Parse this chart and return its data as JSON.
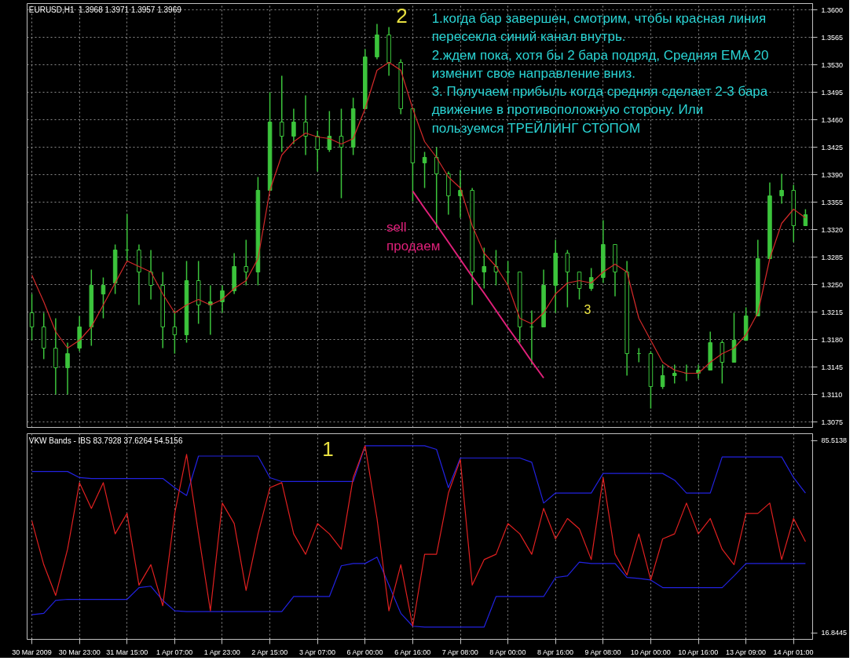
{
  "chart_data": [
    {
      "type": "candlestick",
      "title": "EURUSD,H1  1.3968 1.3971 1.3957 1.3969",
      "color": "#3cc43c",
      "categories": [
        null,
        null,
        null,
        null,
        null,
        null,
        null,
        null,
        null,
        null,
        null,
        null,
        null,
        null,
        null,
        null,
        null,
        null,
        null,
        null,
        null,
        null,
        null,
        null,
        null,
        null,
        null,
        null,
        null,
        null,
        null,
        null,
        null,
        null,
        null,
        null,
        null,
        null,
        null,
        null,
        null,
        null,
        null,
        null,
        null,
        null,
        null,
        null,
        null,
        null,
        null,
        null,
        null,
        null,
        null,
        null,
        null,
        null,
        null,
        null,
        null,
        null,
        null,
        null,
        null,
        null
      ],
      "ohlc": [
        [
          1.3214,
          1.3238,
          1.3179,
          1.3196
        ],
        [
          1.3196,
          1.3214,
          1.3155,
          1.3169
        ],
        [
          1.3169,
          1.3207,
          1.311,
          1.3144
        ],
        [
          1.3144,
          1.3176,
          1.311,
          1.3162
        ],
        [
          1.3169,
          1.321,
          1.3165,
          1.3196
        ],
        [
          1.3196,
          1.3269,
          1.3172,
          1.3249
        ],
        [
          1.3238,
          1.3259,
          1.3207,
          1.3249
        ],
        [
          1.3252,
          1.3301,
          1.3238,
          1.3294
        ],
        [
          1.3294,
          1.334,
          1.328,
          1.3294
        ],
        [
          1.3294,
          1.3301,
          1.3224,
          1.3266
        ],
        [
          1.3266,
          1.3294,
          1.3231,
          1.3249
        ],
        [
          1.3249,
          1.3266,
          1.3169,
          1.3196
        ],
        [
          1.3196,
          1.3217,
          1.3162,
          1.3186
        ],
        [
          1.3186,
          1.328,
          1.3176,
          1.3255
        ],
        [
          1.3255,
          1.328,
          1.32,
          1.3224
        ],
        [
          1.3224,
          1.3249,
          1.3186,
          1.3228
        ],
        [
          1.3228,
          1.3249,
          1.3214,
          1.3242
        ],
        [
          1.3242,
          1.329,
          1.3238,
          1.3273
        ],
        [
          1.3273,
          1.3307,
          1.3249,
          1.3266
        ],
        [
          1.3266,
          1.3387,
          1.3249,
          1.337
        ],
        [
          1.337,
          1.3495,
          1.337,
          1.3457
        ],
        [
          1.3457,
          1.3516,
          1.3419,
          1.3439
        ],
        [
          1.3439,
          1.3474,
          1.3429,
          1.3457
        ],
        [
          1.3457,
          1.3491,
          1.3415,
          1.3439
        ],
        [
          1.3439,
          1.3446,
          1.3394,
          1.3422
        ],
        [
          1.3422,
          1.3471,
          1.3419,
          1.3439
        ],
        [
          1.3439,
          1.3474,
          1.336,
          1.3425
        ],
        [
          1.3425,
          1.3488,
          1.3415,
          1.3474
        ],
        [
          1.3474,
          1.355,
          1.3474,
          1.354
        ],
        [
          1.354,
          1.3582,
          1.3537,
          1.3568
        ],
        [
          1.3568,
          1.3578,
          1.3516,
          1.3533
        ],
        [
          1.3533,
          1.3537,
          1.3467,
          1.3474
        ],
        [
          1.3474,
          1.3474,
          1.3356,
          1.3405
        ],
        [
          1.3405,
          1.3419,
          1.3373,
          1.3412
        ],
        [
          1.3412,
          1.3425,
          1.3321,
          1.3391
        ],
        [
          1.3391,
          1.3394,
          1.3339,
          1.3363
        ],
        [
          1.3363,
          1.3396,
          1.3335,
          1.337
        ],
        [
          1.337,
          1.3373,
          1.3224,
          1.3266
        ],
        [
          1.3266,
          1.3297,
          1.3245,
          1.3273
        ],
        [
          1.3273,
          1.3294,
          1.3249,
          1.3266
        ],
        [
          1.3266,
          1.328,
          1.3249,
          1.3266
        ],
        [
          1.3266,
          1.3266,
          1.3176,
          1.3196
        ],
        [
          1.3196,
          1.3217,
          1.3148,
          1.3196
        ],
        [
          1.3196,
          1.3269,
          1.3196,
          1.3249
        ],
        [
          1.3249,
          1.3307,
          1.3214,
          1.329
        ],
        [
          1.329,
          1.3294,
          1.3221,
          1.3266
        ],
        [
          1.3266,
          1.3266,
          1.3231,
          1.3245
        ],
        [
          1.3245,
          1.3271,
          1.3242,
          1.3259
        ],
        [
          1.3259,
          1.3332,
          1.3252,
          1.3301
        ],
        [
          1.3301,
          1.3301,
          1.3235,
          1.3266
        ],
        [
          1.3266,
          1.328,
          1.3134,
          1.3162
        ],
        [
          1.3162,
          1.3169,
          1.3151,
          1.3162
        ],
        [
          1.3162,
          1.3165,
          1.3092,
          1.312
        ],
        [
          1.312,
          1.3148,
          1.3117,
          1.3134
        ],
        [
          1.3134,
          1.3148,
          1.3124,
          1.3137
        ],
        [
          1.3137,
          1.3148,
          1.3127,
          1.3137
        ],
        [
          1.3137,
          1.3148,
          1.313,
          1.3141
        ],
        [
          1.3141,
          1.319,
          1.3141,
          1.3176
        ],
        [
          1.3176,
          1.3179,
          1.3124,
          1.3151
        ],
        [
          1.3151,
          1.3214,
          1.3151,
          1.3179
        ],
        [
          1.3179,
          1.3221,
          1.3179,
          1.321
        ],
        [
          1.321,
          1.3307,
          1.321,
          1.3283
        ],
        [
          1.3283,
          1.338,
          1.3283,
          1.3363
        ],
        [
          1.3363,
          1.3391,
          1.3353,
          1.337
        ],
        [
          1.337,
          1.3377,
          1.3304,
          1.3325
        ],
        [
          1.3325,
          1.3346,
          1.3325,
          1.3339
        ]
      ],
      "series": [
        {
          "type": "line",
          "color": "#d42a2a",
          "values": [
            1.3262,
            1.3228,
            1.319,
            1.3169,
            1.3179,
            1.3196,
            1.3224,
            1.3252,
            1.328,
            1.3273,
            1.3266,
            1.3238,
            1.3214,
            1.3224,
            1.3231,
            1.3224,
            1.3231,
            1.3245,
            1.3255,
            1.3283,
            1.337,
            1.3415,
            1.3432,
            1.3443,
            1.3438,
            1.3436,
            1.3429,
            1.3436,
            1.3474,
            1.3523,
            1.3533,
            1.3523,
            1.3474,
            1.3432,
            1.3412,
            1.3387,
            1.3373,
            1.3325,
            1.329,
            1.3273,
            1.3249,
            1.3207,
            1.32,
            1.3214,
            1.3238,
            1.3252,
            1.3255,
            1.3252,
            1.3266,
            1.3276,
            1.3266,
            1.3207,
            1.3179,
            1.3151,
            1.3141,
            1.3137,
            1.3137,
            1.3151,
            1.3162,
            1.3169,
            1.3186,
            1.3214,
            1.3283,
            1.3328,
            1.3346,
            1.3335
          ]
        },
        {
          "type": "line",
          "color": "#e0207a",
          "values": [
            null,
            null,
            null,
            null,
            null,
            null,
            null,
            null,
            null,
            null,
            null,
            null,
            null,
            null,
            null,
            null,
            null,
            null,
            null,
            null,
            null,
            null,
            null,
            null,
            null,
            null,
            null,
            null,
            null,
            null,
            null,
            null,
            1.3369,
            1.3347,
            1.3326,
            1.3304,
            1.3282,
            1.326,
            1.3239,
            1.3217,
            1.3195,
            1.3174,
            1.3152,
            1.3131,
            null,
            null,
            null,
            null,
            null,
            null,
            null,
            null,
            null,
            null,
            null,
            null,
            null,
            null,
            null,
            null,
            null,
            null,
            null,
            null,
            null,
            null
          ]
        }
      ],
      "ylim": [
        1.3068,
        1.3608
      ],
      "yticks": [
        1.3075,
        {
          "value": 1.311,
          "label": "1.3110"
        },
        1.3145,
        {
          "value": 1.318,
          "label": "1.3180"
        },
        1.3215,
        {
          "value": 1.325,
          "label": "1.3250"
        },
        1.3285,
        {
          "value": 1.332,
          "label": "1.3320"
        },
        1.3355,
        {
          "value": 1.339,
          "label": "1.3390"
        },
        1.3425,
        {
          "value": 1.346,
          "label": "1.3460"
        },
        1.3495,
        {
          "value": 1.353,
          "label": "1.3530"
        },
        1.3565,
        {
          "value": 1.36,
          "label": "1.3600"
        }
      ],
      "grid": true,
      "tick_labels": "y",
      "annotations": [
        "2",
        "1.когда бар завершен, смотрим, чтобы красная линия\nпересекла синий канал внутрь.\n2.ждем пока, хотя бы 2 бара подряд, Средняя ЕМА 20\nизменит свое направление вниз.\n3. Получаем прибыль когда средняя сделает 2-3 бара\nдвижение в противоположную сторону. Или\nпользуемся ТРЕЙЛИНГ СТОПОМ",
        "sell",
        "продаем",
        "3"
      ]
    },
    {
      "type": "line",
      "title": "VKW Bands - IBS 83.7928 37.6264 54.5156",
      "categories": [
        "30 Mar 2009",
        null,
        null,
        null,
        "30 Mar 23:00",
        null,
        null,
        null,
        "31 Mar 15:00",
        null,
        null,
        null,
        "1 Apr 07:00",
        null,
        null,
        null,
        "1 Apr 23:00",
        null,
        null,
        null,
        "2 Apr 15:00",
        null,
        null,
        null,
        "3 Apr 07:00",
        null,
        null,
        null,
        "6 Apr 00:00",
        null,
        null,
        null,
        "6 Apr 16:00",
        null,
        null,
        null,
        "7 Apr 08:00",
        null,
        null,
        null,
        "8 Apr 00:00",
        null,
        null,
        null,
        "8 Apr 16:00",
        null,
        null,
        null,
        "9 Apr 08:00",
        null,
        null,
        null,
        "10 Apr 00:00",
        null,
        null,
        null,
        "10 Apr 16:00",
        null,
        null,
        null,
        "13 Apr 09:00",
        null,
        null,
        null,
        "14 Apr 01:00",
        null
      ],
      "series": [
        {
          "color": "#2222e0",
          "values": [
            74.5,
            74.5,
            74.5,
            74.5,
            72.3,
            72.0,
            72.0,
            72.0,
            72.0,
            72.0,
            72.0,
            72.0,
            68.7,
            65.9,
            80.0,
            80.0,
            80.0,
            80.0,
            80.0,
            80.0,
            72.3,
            70.9,
            70.9,
            70.9,
            70.9,
            70.9,
            70.9,
            70.9,
            83.7,
            83.7,
            83.7,
            83.7,
            83.7,
            83.7,
            82.4,
            68.7,
            79.3,
            79.3,
            79.3,
            79.3,
            79.3,
            79.3,
            77.8,
            63.2,
            66.8,
            66.8,
            66.8,
            66.8,
            73.8,
            73.8,
            73.8,
            73.8,
            73.8,
            73.8,
            71.4,
            66.8,
            66.8,
            66.8,
            79.7,
            79.7,
            79.7,
            79.7,
            79.7,
            79.7,
            72.3,
            66.8
          ]
        },
        {
          "color": "#2222e0",
          "values": [
            23.3,
            23.8,
            28.4,
            28.8,
            28.8,
            28.8,
            28.8,
            28.8,
            28.8,
            33.0,
            33.5,
            28.4,
            24.7,
            24.4,
            24.4,
            24.4,
            24.4,
            24.4,
            24.4,
            24.4,
            24.4,
            24.4,
            29.8,
            29.8,
            29.8,
            29.8,
            40.8,
            41.6,
            41.6,
            43.9,
            33.9,
            23.8,
            19.2,
            18.9,
            18.9,
            18.9,
            18.9,
            18.9,
            18.9,
            29.8,
            29.8,
            29.8,
            29.8,
            29.8,
            36.6,
            37.2,
            42.1,
            41.6,
            41.6,
            41.6,
            36.6,
            36.3,
            35.7,
            33.0,
            33.0,
            33.0,
            33.0,
            33.0,
            33.0,
            37.2,
            41.6,
            41.6,
            41.6,
            41.6,
            41.6,
            41.6
          ]
        },
        {
          "color": "#e02020",
          "values": [
            56.8,
            41.2,
            30.2,
            46.7,
            70.5,
            61.3,
            70.5,
            52.2,
            59.5,
            33.9,
            41.2,
            26.5,
            59.5,
            80.6,
            52.2,
            24.7,
            63.2,
            55.9,
            32.0,
            52.2,
            68.7,
            70.5,
            52.2,
            44.9,
            55.9,
            52.2,
            46.7,
            72.3,
            83.7,
            57.7,
            24.7,
            41.2,
            19.2,
            44.9,
            44.9,
            66.8,
            78.7,
            33.9,
            43.0,
            44.9,
            55.9,
            52.2,
            44.9,
            61.3,
            50.4,
            57.7,
            54.0,
            43.0,
            72.3,
            44.9,
            37.5,
            52.2,
            35.7,
            50.4,
            52.2,
            63.2,
            52.2,
            57.7,
            46.7,
            41.2,
            59.5,
            59.5,
            63.2,
            43.0,
            57.7,
            49.4
          ]
        }
      ],
      "ylim": [
        14.5,
        88.0
      ],
      "yticks": [
        16.8445,
        85.5138
      ],
      "grid": "x",
      "annotations": [
        "1"
      ]
    }
  ]
}
